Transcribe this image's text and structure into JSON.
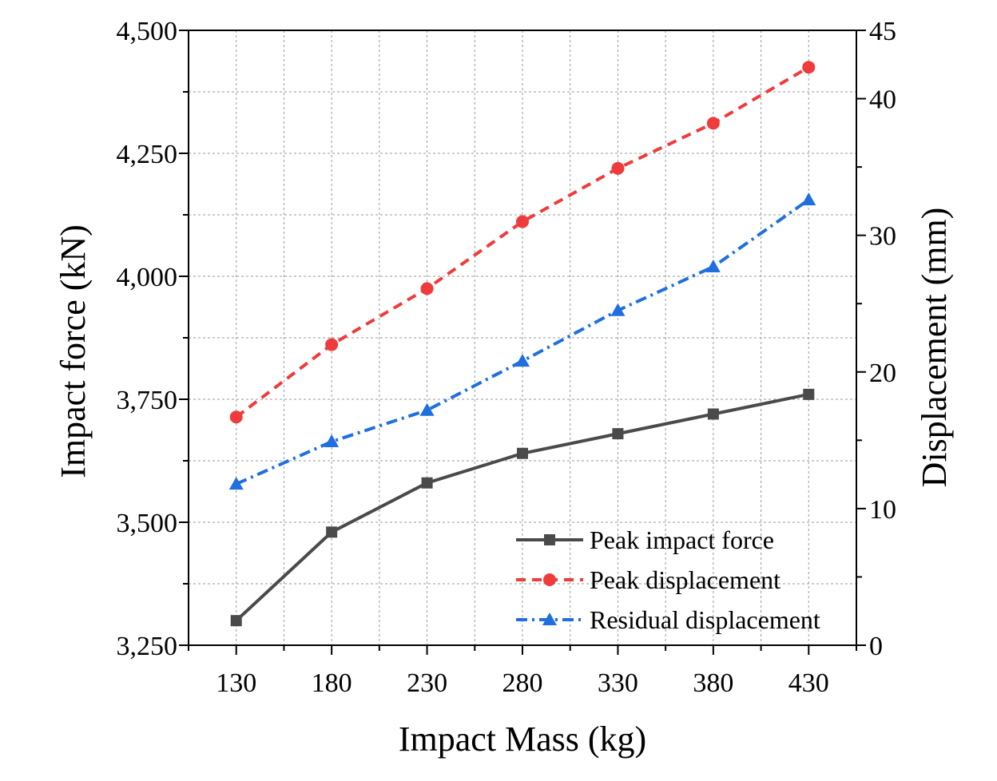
{
  "chart_data": {
    "type": "line",
    "x": [
      130,
      180,
      230,
      280,
      330,
      380,
      430
    ],
    "xlabel": "Impact Mass (kg)",
    "x_tick_labels": [
      "130",
      "180",
      "230",
      "280",
      "330",
      "380",
      "430"
    ],
    "xlim": [
      105,
      455
    ],
    "y_left": {
      "label": "Impact force (kN)",
      "lim": [
        3250,
        4500
      ],
      "tick_labels": [
        "3,250",
        "3,500",
        "3,750",
        "4,000",
        "4,250",
        "4,500"
      ],
      "tick_values": [
        3250,
        3500,
        3750,
        4000,
        4250,
        4500
      ]
    },
    "y_right": {
      "label": "Displacement (mm)",
      "lim": [
        0,
        45
      ],
      "tick_labels": [
        "0",
        "10",
        "20",
        "30",
        "40",
        "45"
      ],
      "tick_values": [
        0,
        10,
        20,
        30,
        40,
        45
      ]
    },
    "grid": true,
    "legend_position": "bottom-right",
    "series": [
      {
        "name": "Peak impact force",
        "axis": "left",
        "color": "#4a4a4a",
        "marker": "square",
        "dash": "solid",
        "values": [
          3300,
          3480,
          3580,
          3640,
          3680,
          3720,
          3760
        ]
      },
      {
        "name": "Peak displacement",
        "axis": "right",
        "color": "#ef3b3b",
        "marker": "circle",
        "dash": "dash",
        "values": [
          16.7,
          22.0,
          26.1,
          31.0,
          34.9,
          38.2,
          42.3
        ]
      },
      {
        "name": "Residual displacement",
        "axis": "right",
        "color": "#1f6fe0",
        "marker": "triangle",
        "dash": "dashdot",
        "values": [
          11.8,
          14.9,
          17.2,
          20.8,
          24.5,
          27.7,
          32.6
        ]
      }
    ]
  }
}
